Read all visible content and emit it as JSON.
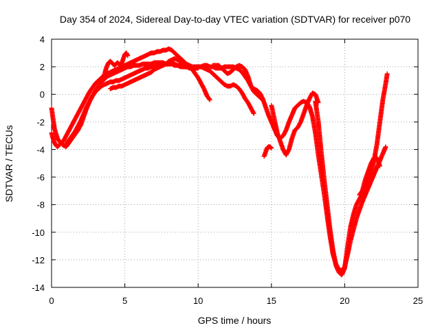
{
  "chart_data": {
    "type": "scatter",
    "title": "Day 354 of 2024, Sidereal Day-to-day VTEC variation (SDTVAR) for receiver p070",
    "xlabel": "GPS time / hours",
    "ylabel": "SDTVAR / TECUs",
    "xlim": [
      0,
      25
    ],
    "ylim": [
      -14,
      4
    ],
    "xticks": [
      0,
      5,
      10,
      15,
      20,
      25
    ],
    "yticks": [
      -14,
      -12,
      -10,
      -8,
      -6,
      -4,
      -2,
      0,
      2,
      4
    ],
    "grid": true,
    "legend": "none",
    "marker": "plus",
    "color": "#ff0000",
    "series": [
      {
        "x": [
          0.0,
          0.1,
          0.2,
          0.3,
          0.4,
          0.5,
          0.6,
          0.8,
          1.0,
          1.2,
          1.4,
          1.6,
          1.8,
          2.0,
          2.2,
          2.4,
          2.6,
          2.8,
          3.0,
          3.2,
          3.4,
          3.6,
          3.8,
          4.0,
          4.2,
          4.4,
          4.6,
          4.8,
          5.0,
          5.2,
          5.4,
          5.6,
          5.8,
          6.0,
          6.2,
          6.4,
          6.6,
          6.8,
          7.0,
          7.2,
          7.4,
          7.6,
          7.8,
          8.0,
          8.2,
          8.4,
          8.6,
          8.8,
          9.0,
          9.2,
          9.4,
          9.6,
          9.8,
          10.0
        ],
        "y": [
          -2.8,
          -3.2,
          -3.5,
          -3.7,
          -3.8,
          -3.7,
          -3.6,
          -3.4,
          -3.0,
          -2.6,
          -2.2,
          -1.8,
          -1.4,
          -1.0,
          -0.6,
          -0.2,
          0.2,
          0.5,
          0.8,
          1.0,
          1.2,
          1.4,
          1.5,
          1.6,
          1.7,
          1.8,
          1.9,
          2.0,
          2.1,
          2.2,
          2.3,
          2.4,
          2.5,
          2.6,
          2.7,
          2.8,
          2.9,
          3.0,
          3.0,
          3.1,
          3.1,
          3.2,
          3.2,
          3.3,
          3.2,
          3.0,
          2.8,
          2.6,
          2.4,
          2.2,
          2.1,
          2.0,
          2.0,
          2.0
        ]
      },
      {
        "x": [
          0.0,
          0.2,
          0.4,
          0.6,
          0.8,
          1.0,
          1.2,
          1.4,
          1.6,
          1.8,
          2.0,
          2.2,
          2.4,
          2.6,
          2.8,
          3.0,
          3.2,
          3.4,
          3.6,
          3.8,
          4.0,
          4.2,
          4.4,
          4.6,
          4.8,
          5.0,
          5.2,
          5.4,
          5.6,
          5.8,
          6.0,
          6.2,
          6.4,
          6.6,
          6.8,
          7.0,
          7.2,
          7.4,
          7.6,
          7.8,
          8.0,
          8.2,
          8.4,
          8.6,
          8.8,
          9.0,
          9.2,
          9.4,
          9.6,
          9.8,
          10.0
        ],
        "y": [
          -1.0,
          -2.5,
          -3.2,
          -3.5,
          -3.7,
          -3.8,
          -3.5,
          -3.2,
          -2.9,
          -2.6,
          -2.2,
          -1.6,
          -1.0,
          -0.5,
          -0.1,
          0.3,
          0.6,
          0.9,
          1.1,
          1.3,
          1.4,
          1.5,
          1.6,
          1.7,
          1.8,
          1.9,
          2.0,
          2.0,
          2.1,
          2.1,
          2.1,
          2.2,
          2.2,
          2.2,
          2.2,
          2.3,
          2.3,
          2.3,
          2.3,
          2.2,
          2.2,
          2.2,
          2.1,
          2.1,
          2.0,
          2.0,
          2.0,
          2.0,
          1.9,
          1.9,
          1.9
        ]
      },
      {
        "x": [
          1.0,
          1.2,
          1.4,
          1.6,
          1.8,
          2.0,
          2.2,
          2.4,
          2.6,
          2.8,
          3.0,
          3.2,
          3.4,
          3.6,
          3.8,
          4.0,
          4.2,
          4.4,
          4.6,
          4.8,
          5.0,
          5.2,
          5.4,
          5.6,
          5.8,
          6.0,
          6.2,
          6.4,
          6.6,
          6.8,
          7.0,
          7.2,
          7.4,
          7.6,
          7.8,
          8.0,
          8.2,
          8.4,
          8.6,
          8.8,
          9.0
        ],
        "y": [
          -3.6,
          -3.3,
          -3.0,
          -2.7,
          -2.3,
          -1.9,
          -1.4,
          -0.9,
          -0.5,
          -0.1,
          0.2,
          0.4,
          0.6,
          0.7,
          0.8,
          0.9,
          0.9,
          1.0,
          1.0,
          1.1,
          1.2,
          1.3,
          1.4,
          1.5,
          1.6,
          1.7,
          1.8,
          1.9,
          1.9,
          2.0,
          2.0,
          2.1,
          2.1,
          2.2,
          2.2,
          2.2,
          2.3,
          2.2,
          2.1,
          2.1,
          2.1
        ]
      },
      {
        "x": [
          4.0,
          4.2,
          4.4,
          4.6,
          4.8,
          5.0,
          5.2,
          5.4,
          5.6,
          5.8,
          6.0,
          6.2,
          6.4,
          6.6,
          6.8,
          7.0,
          7.2,
          7.4,
          7.6,
          7.8,
          8.0,
          8.2,
          8.4,
          8.6,
          8.8,
          9.0,
          9.2,
          9.4,
          9.6,
          9.8,
          10.0,
          10.2,
          10.4,
          10.6,
          10.8
        ],
        "y": [
          0.4,
          0.5,
          0.5,
          0.6,
          0.6,
          0.7,
          0.8,
          0.9,
          1.0,
          1.1,
          1.2,
          1.3,
          1.4,
          1.5,
          1.6,
          1.8,
          1.9,
          2.0,
          2.1,
          2.2,
          2.4,
          2.5,
          2.6,
          2.5,
          2.4,
          2.3,
          2.2,
          2.0,
          1.8,
          1.5,
          1.2,
          0.8,
          0.4,
          -0.1,
          -0.4
        ]
      },
      {
        "x": [
          3.5,
          3.6,
          3.7,
          3.8,
          3.9,
          4.0,
          4.1,
          4.2,
          4.3,
          4.4,
          4.5,
          4.6,
          4.7,
          4.8,
          4.9,
          5.0,
          5.1,
          5.2
        ],
        "y": [
          1.0,
          1.4,
          1.8,
          2.1,
          2.3,
          2.4,
          2.3,
          2.2,
          2.1,
          2.2,
          2.3,
          2.2,
          2.1,
          2.3,
          2.6,
          2.9,
          3.0,
          2.8
        ]
      },
      {
        "x": [
          10.0,
          10.2,
          10.4,
          10.6,
          10.8,
          11.0,
          11.2,
          11.4,
          11.6,
          11.8,
          12.0,
          12.2,
          12.4,
          12.6,
          12.8,
          13.0,
          13.2,
          13.4,
          13.6,
          13.8,
          14.0,
          14.2,
          14.4,
          14.6,
          14.8,
          15.0,
          15.2,
          15.4,
          15.6,
          15.8,
          16.0,
          16.2,
          16.4,
          16.6,
          16.8,
          17.0,
          17.2,
          17.4,
          17.6,
          17.8,
          18.0,
          18.2,
          18.4,
          18.6,
          18.8,
          19.0,
          19.2,
          19.4,
          19.6,
          19.8,
          20.0,
          20.2,
          20.4,
          20.6,
          20.8,
          21.0,
          21.2,
          21.4,
          21.6,
          21.8,
          22.0,
          22.2,
          22.4,
          22.6,
          22.8
        ],
        "y": [
          2.0,
          2.0,
          2.1,
          2.1,
          2.0,
          2.0,
          1.9,
          1.9,
          1.9,
          2.0,
          2.0,
          2.0,
          2.0,
          1.9,
          1.8,
          1.6,
          1.3,
          1.0,
          0.6,
          0.4,
          0.3,
          0.1,
          -0.3,
          -0.9,
          -1.5,
          -2.0,
          -2.5,
          -3.0,
          -3.2,
          -3.0,
          -2.6,
          -2.0,
          -1.5,
          -1.0,
          -0.8,
          -0.6,
          -0.5,
          -0.6,
          -0.9,
          -1.6,
          -2.8,
          -4.4,
          -5.8,
          -7.2,
          -8.8,
          -10.3,
          -11.6,
          -12.3,
          -12.7,
          -12.8,
          -12.5,
          -11.6,
          -10.6,
          -9.8,
          -9.0,
          -8.4,
          -7.8,
          -7.3,
          -6.8,
          -6.3,
          -5.8,
          -5.3,
          -4.8,
          -4.3,
          -3.8
        ]
      },
      {
        "x": [
          9.0,
          9.2,
          9.4,
          9.6,
          9.8,
          10.0,
          10.2,
          10.4,
          10.6,
          10.8,
          11.0,
          11.2,
          11.4,
          11.6,
          11.8,
          12.0,
          12.2,
          12.4,
          12.6,
          12.8,
          13.0,
          13.2,
          13.4,
          13.6,
          13.8
        ],
        "y": [
          2.0,
          2.0,
          1.9,
          1.9,
          1.9,
          2.0,
          2.0,
          1.9,
          1.8,
          1.7,
          1.5,
          1.3,
          1.1,
          0.9,
          0.7,
          0.6,
          0.6,
          0.7,
          0.6,
          0.4,
          0.1,
          -0.3,
          -0.6,
          -1.0,
          -1.4
        ]
      },
      {
        "x": [
          11.0,
          11.2,
          11.4,
          11.6,
          11.8,
          12.0,
          12.2,
          12.4,
          12.6,
          12.8,
          13.0,
          13.2,
          13.4,
          13.6,
          13.8,
          14.0,
          14.2,
          14.4
        ],
        "y": [
          2.1,
          2.1,
          2.1,
          1.9,
          1.7,
          1.5,
          1.6,
          1.8,
          2.0,
          2.1,
          2.0,
          1.8,
          1.3,
          0.6,
          0.2,
          0.0,
          -0.2,
          -0.4
        ]
      },
      {
        "x": [
          14.5,
          14.6,
          14.7,
          14.8,
          14.9,
          15.0
        ],
        "y": [
          -4.5,
          -4.2,
          -3.9,
          -3.8,
          -3.8,
          -3.9
        ]
      },
      {
        "x": [
          15.0,
          15.2,
          15.4,
          15.6,
          15.8,
          16.0,
          16.2,
          16.4,
          16.6,
          16.8,
          17.0,
          17.2,
          17.4,
          17.6,
          17.8,
          18.0,
          18.2
        ],
        "y": [
          -0.8,
          -1.8,
          -2.8,
          -3.4,
          -4.0,
          -4.4,
          -4.0,
          -3.2,
          -2.6,
          -2.4,
          -2.0,
          -1.4,
          -0.8,
          -0.3,
          0.1,
          0.0,
          -0.6
        ]
      },
      {
        "x": [
          18.0,
          18.2,
          18.4,
          18.6,
          18.8,
          19.0,
          19.2,
          19.4,
          19.6,
          19.8,
          20.0,
          20.2,
          20.4,
          20.6,
          20.8,
          21.0,
          21.2,
          21.4,
          21.6,
          21.8,
          22.0,
          22.2,
          22.4,
          22.6,
          22.8,
          22.9
        ],
        "y": [
          -0.5,
          -2.0,
          -4.2,
          -6.2,
          -8.0,
          -9.8,
          -11.3,
          -12.4,
          -12.9,
          -13.1,
          -12.6,
          -11.0,
          -9.6,
          -8.7,
          -8.0,
          -7.6,
          -7.2,
          -6.7,
          -6.3,
          -5.7,
          -4.8,
          -3.6,
          -2.0,
          -0.4,
          0.8,
          1.5
        ]
      },
      {
        "x": [
          21.0,
          21.2,
          21.4,
          21.6,
          21.8,
          22.0,
          22.2,
          22.4
        ],
        "y": [
          -7.3,
          -7.0,
          -6.2,
          -5.6,
          -5.0,
          -4.6,
          -4.6,
          -5.2
        ]
      }
    ]
  }
}
